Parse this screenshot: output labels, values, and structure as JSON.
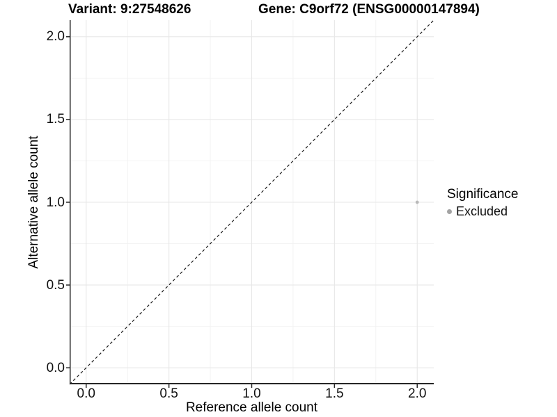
{
  "figure": {
    "title_left": "Variant: 9:27548626",
    "title_right": "Gene: C9orf72 (ENSG00000147894)"
  },
  "chart_data": {
    "type": "scatter",
    "title": "Variant: 9:27548626    Gene: C9orf72 (ENSG00000147894)",
    "variant": "9:27548626",
    "gene": "C9orf72",
    "gene_id": "ENSG00000147894",
    "xlabel": "Reference allele count",
    "ylabel": "Alternative allele count",
    "xlim": [
      -0.1,
      2.1
    ],
    "ylim": [
      -0.1,
      2.1
    ],
    "x_ticks": [
      0.0,
      0.5,
      1.0,
      1.5,
      2.0
    ],
    "y_ticks": [
      0.0,
      0.5,
      1.0,
      1.5,
      2.0
    ],
    "x_minor_ticks": [
      0.25,
      0.75,
      1.25,
      1.75
    ],
    "y_minor_ticks": [
      0.25,
      0.75,
      1.25,
      1.75
    ],
    "tick_label_format": "one-decimal",
    "grid": true,
    "legend_position": "right",
    "series": [
      {
        "name": "Excluded",
        "points": [
          {
            "x": 2.0,
            "y": 1.0
          }
        ],
        "color": "#b9b9b9"
      }
    ],
    "identity_line": {
      "style": "dashed",
      "slope": 1,
      "intercept": 0,
      "color": "#1a1a1a"
    },
    "legend": {
      "title": "Significance",
      "items": [
        {
          "label": "Excluded",
          "color": "#a3a3a3"
        }
      ]
    },
    "colors": {
      "background": "#ffffff",
      "grid_major": "#e7e7e7",
      "grid_minor": "#f2f2f2",
      "axis_line": "#262626",
      "tick_mark": "#262626",
      "point": "#b9b9b9"
    }
  }
}
